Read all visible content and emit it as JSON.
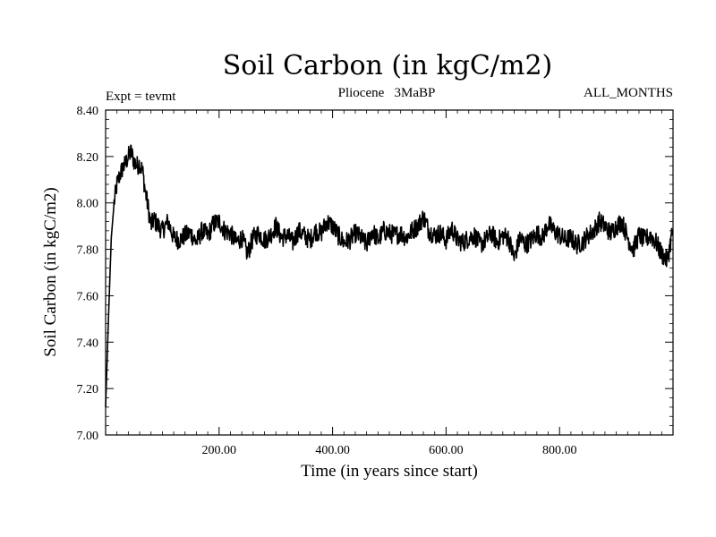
{
  "chart_data": {
    "type": "line",
    "title": "Soil Carbon (in kgC/m2)",
    "subtitle": "Pliocene   3MaBP",
    "left_note": "Expt = tevmt",
    "right_note": "ALL_MONTHS",
    "xlabel": "Time (in years since start)",
    "ylabel": "Soil Carbon (in kgC/m2)",
    "xlim": [
      0,
      1000
    ],
    "ylim": [
      7.0,
      8.4
    ],
    "x_ticks": [
      200,
      400,
      600,
      800
    ],
    "x_tick_labels": [
      "200.00",
      "400.00",
      "600.00",
      "800.00"
    ],
    "y_ticks": [
      7.0,
      7.2,
      7.4,
      7.6,
      7.8,
      8.0,
      8.2,
      8.4
    ],
    "y_tick_labels": [
      "7.00",
      "7.20",
      "7.40",
      "7.60",
      "7.80",
      "8.00",
      "8.20",
      "8.40"
    ],
    "series": [
      {
        "name": "Soil Carbon",
        "color": "#000000",
        "x": [
          0,
          5,
          10,
          15,
          20,
          25,
          30,
          35,
          40,
          45,
          50,
          55,
          60,
          65,
          70,
          75,
          80,
          85,
          90,
          100,
          110,
          120,
          130,
          140,
          150,
          160,
          170,
          180,
          190,
          200,
          210,
          220,
          230,
          240,
          250,
          260,
          270,
          280,
          290,
          300,
          310,
          320,
          330,
          340,
          350,
          360,
          370,
          380,
          390,
          400,
          410,
          420,
          430,
          440,
          450,
          460,
          470,
          480,
          490,
          500,
          510,
          520,
          530,
          540,
          550,
          560,
          570,
          580,
          590,
          600,
          610,
          620,
          630,
          640,
          650,
          660,
          670,
          680,
          690,
          700,
          710,
          720,
          730,
          740,
          750,
          760,
          770,
          780,
          790,
          800,
          810,
          820,
          830,
          840,
          850,
          860,
          870,
          880,
          890,
          900,
          910,
          920,
          930,
          940,
          950,
          960,
          970,
          980,
          990,
          999
        ],
        "values": [
          7.12,
          7.5,
          7.85,
          8.0,
          8.08,
          8.12,
          8.15,
          8.17,
          8.2,
          8.22,
          8.18,
          8.16,
          8.17,
          8.14,
          8.05,
          7.98,
          7.9,
          7.93,
          7.91,
          7.88,
          7.92,
          7.85,
          7.84,
          7.86,
          7.87,
          7.83,
          7.88,
          7.86,
          7.91,
          7.92,
          7.88,
          7.87,
          7.83,
          7.85,
          7.78,
          7.85,
          7.87,
          7.84,
          7.86,
          7.9,
          7.85,
          7.86,
          7.83,
          7.88,
          7.86,
          7.84,
          7.88,
          7.87,
          7.92,
          7.9,
          7.86,
          7.83,
          7.84,
          7.87,
          7.85,
          7.82,
          7.88,
          7.84,
          7.88,
          7.87,
          7.86,
          7.87,
          7.85,
          7.88,
          7.9,
          7.94,
          7.88,
          7.86,
          7.87,
          7.84,
          7.89,
          7.84,
          7.83,
          7.85,
          7.86,
          7.82,
          7.84,
          7.87,
          7.83,
          7.86,
          7.85,
          7.76,
          7.85,
          7.82,
          7.84,
          7.87,
          7.85,
          7.91,
          7.88,
          7.86,
          7.84,
          7.85,
          7.82,
          7.83,
          7.86,
          7.88,
          7.92,
          7.9,
          7.87,
          7.9,
          7.92,
          7.85,
          7.8,
          7.86,
          7.84,
          7.86,
          7.83,
          7.78,
          7.75,
          7.88
        ]
      }
    ]
  }
}
